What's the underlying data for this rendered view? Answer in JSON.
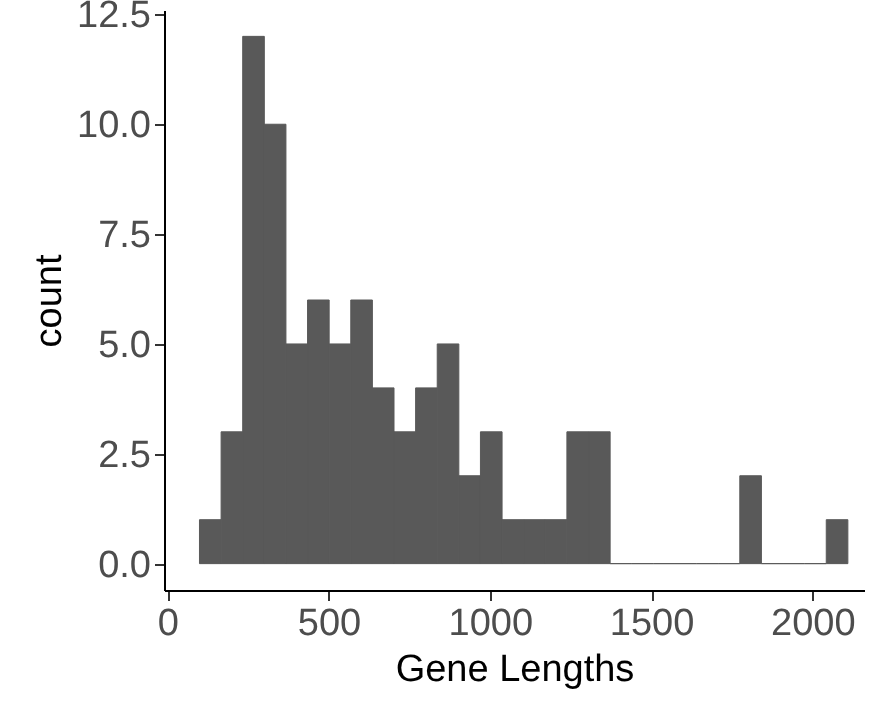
{
  "chart_data": {
    "type": "histogram",
    "xlabel": "Gene Lengths",
    "ylabel": "count",
    "bins": [
      100,
      167,
      234,
      301,
      368,
      435,
      502,
      569,
      636,
      703,
      770,
      837,
      904,
      971,
      1038,
      1105,
      1172,
      1239,
      1306,
      1373,
      1440,
      1507,
      1574,
      1641,
      1708,
      1775,
      1842,
      1909,
      1976,
      2043,
      2110
    ],
    "values": [
      1,
      3,
      12,
      10,
      5,
      6,
      5,
      6,
      4,
      3,
      4,
      5,
      2,
      3,
      1,
      1,
      1,
      3,
      3,
      0,
      0,
      0,
      0,
      0,
      0,
      2,
      0,
      0,
      0,
      1
    ],
    "color": "#595959",
    "xlim": [
      -10,
      2160
    ],
    "xticks": [
      0,
      500,
      1000,
      1500,
      2000
    ],
    "ylim": [
      -0.6,
      12.6
    ],
    "yticks": [
      {
        "value": 0,
        "label": "0.0"
      },
      {
        "value": 2.5,
        "label": "2.5"
      },
      {
        "value": 5,
        "label": "5.0"
      },
      {
        "value": 7.5,
        "label": "7.5"
      },
      {
        "value": 10,
        "label": "10.0"
      },
      {
        "value": 12.5,
        "label": "12.5"
      }
    ],
    "grid": false
  }
}
